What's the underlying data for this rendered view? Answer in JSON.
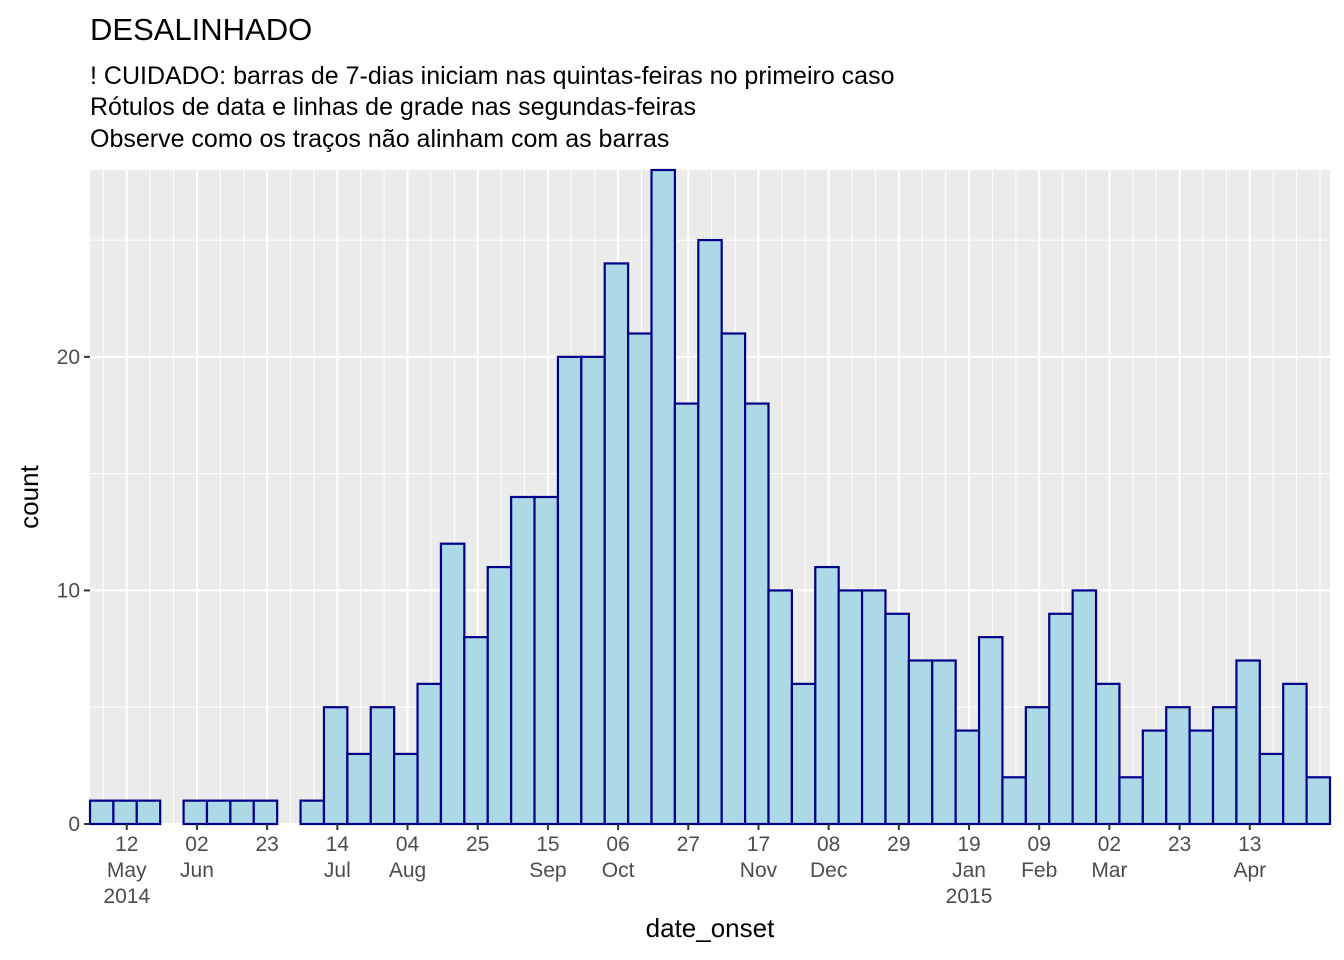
{
  "chart_data": {
    "type": "bar",
    "title": "DESALINHADO",
    "subtitle": [
      "! CUIDADO: barras de 7-dias iniciam nas quintas-feiras no primeiro caso",
      "Rótulos de data e linhas de grade nas segundas-feiras",
      "Observe como os traços não alinham com as barras"
    ],
    "xlabel": "date_onset",
    "ylabel": "count",
    "bin_days": 7,
    "first_bin_start": "2014-05-01",
    "bins": [
      {
        "start": "2014-05-01",
        "count": 1
      },
      {
        "start": "2014-05-08",
        "count": 1
      },
      {
        "start": "2014-05-15",
        "count": 1
      },
      {
        "start": "2014-05-22",
        "count": 0
      },
      {
        "start": "2014-05-29",
        "count": 1
      },
      {
        "start": "2014-06-05",
        "count": 1
      },
      {
        "start": "2014-06-12",
        "count": 1
      },
      {
        "start": "2014-06-19",
        "count": 1
      },
      {
        "start": "2014-06-26",
        "count": 0
      },
      {
        "start": "2014-07-03",
        "count": 1
      },
      {
        "start": "2014-07-10",
        "count": 5
      },
      {
        "start": "2014-07-17",
        "count": 3
      },
      {
        "start": "2014-07-24",
        "count": 5
      },
      {
        "start": "2014-07-31",
        "count": 3
      },
      {
        "start": "2014-08-07",
        "count": 6
      },
      {
        "start": "2014-08-14",
        "count": 12
      },
      {
        "start": "2014-08-21",
        "count": 8
      },
      {
        "start": "2014-08-28",
        "count": 11
      },
      {
        "start": "2014-09-04",
        "count": 14
      },
      {
        "start": "2014-09-11",
        "count": 14
      },
      {
        "start": "2014-09-18",
        "count": 20
      },
      {
        "start": "2014-09-25",
        "count": 20
      },
      {
        "start": "2014-10-02",
        "count": 24
      },
      {
        "start": "2014-10-09",
        "count": 21
      },
      {
        "start": "2014-10-16",
        "count": 28
      },
      {
        "start": "2014-10-23",
        "count": 18
      },
      {
        "start": "2014-10-30",
        "count": 25
      },
      {
        "start": "2014-11-06",
        "count": 21
      },
      {
        "start": "2014-11-13",
        "count": 18
      },
      {
        "start": "2014-11-20",
        "count": 10
      },
      {
        "start": "2014-11-27",
        "count": 6
      },
      {
        "start": "2014-12-04",
        "count": 11
      },
      {
        "start": "2014-12-11",
        "count": 10
      },
      {
        "start": "2014-12-18",
        "count": 10
      },
      {
        "start": "2014-12-25",
        "count": 9
      },
      {
        "start": "2015-01-01",
        "count": 7
      },
      {
        "start": "2015-01-08",
        "count": 7
      },
      {
        "start": "2015-01-15",
        "count": 4
      },
      {
        "start": "2015-01-22",
        "count": 8
      },
      {
        "start": "2015-01-29",
        "count": 2
      },
      {
        "start": "2015-02-05",
        "count": 5
      },
      {
        "start": "2015-02-12",
        "count": 9
      },
      {
        "start": "2015-02-19",
        "count": 10
      },
      {
        "start": "2015-02-26",
        "count": 6
      },
      {
        "start": "2015-03-05",
        "count": 2
      },
      {
        "start": "2015-03-12",
        "count": 4
      },
      {
        "start": "2015-03-19",
        "count": 5
      },
      {
        "start": "2015-03-26",
        "count": 4
      },
      {
        "start": "2015-04-02",
        "count": 5
      },
      {
        "start": "2015-04-09",
        "count": 7
      },
      {
        "start": "2015-04-16",
        "count": 3
      },
      {
        "start": "2015-04-23",
        "count": 6
      },
      {
        "start": "2015-04-30",
        "count": 2
      }
    ],
    "xlim": [
      "2014-05-01",
      "2015-05-07"
    ],
    "ylim": [
      0,
      28
    ],
    "y_ticks": [
      0,
      10,
      20
    ],
    "x_ticks": [
      {
        "date": "2014-05-12",
        "label": [
          "12",
          "May",
          "2014"
        ]
      },
      {
        "date": "2014-06-02",
        "label": [
          "02",
          "Jun"
        ]
      },
      {
        "date": "2014-06-23",
        "label": [
          "23"
        ]
      },
      {
        "date": "2014-07-14",
        "label": [
          "14",
          "Jul"
        ]
      },
      {
        "date": "2014-08-04",
        "label": [
          "04",
          "Aug"
        ]
      },
      {
        "date": "2014-08-25",
        "label": [
          "25"
        ]
      },
      {
        "date": "2014-09-15",
        "label": [
          "15",
          "Sep"
        ]
      },
      {
        "date": "2014-10-06",
        "label": [
          "06",
          "Oct"
        ]
      },
      {
        "date": "2014-10-27",
        "label": [
          "27"
        ]
      },
      {
        "date": "2014-11-17",
        "label": [
          "17",
          "Nov"
        ]
      },
      {
        "date": "2014-12-08",
        "label": [
          "08",
          "Dec"
        ]
      },
      {
        "date": "2014-12-29",
        "label": [
          "29"
        ]
      },
      {
        "date": "2015-01-19",
        "label": [
          "19",
          "Jan",
          "2015"
        ]
      },
      {
        "date": "2015-02-09",
        "label": [
          "09",
          "Feb"
        ]
      },
      {
        "date": "2015-03-02",
        "label": [
          "02",
          "Mar"
        ]
      },
      {
        "date": "2015-03-23",
        "label": [
          "23"
        ]
      },
      {
        "date": "2015-04-13",
        "label": [
          "13",
          "Apr"
        ]
      }
    ],
    "grid": true,
    "minor_grid": "weekly, Mondays",
    "colors": {
      "panel_background": "#ebebeb",
      "grid": "#ffffff",
      "bar_fill": "#add8e6",
      "bar_outline": "#00008b",
      "tick_text": "#4d4d4d"
    }
  }
}
